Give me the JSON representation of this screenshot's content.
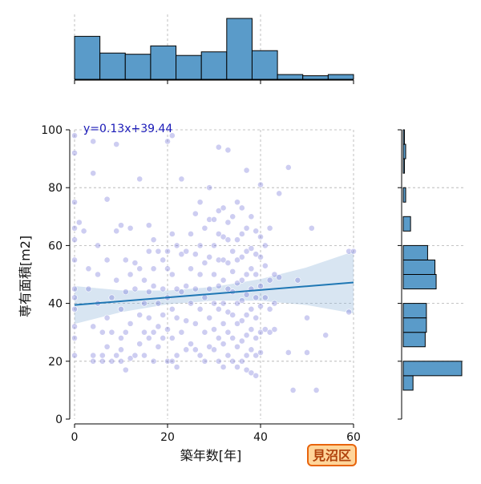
{
  "chart_data": {
    "type": "scatter",
    "xlabel": "築年数[年]",
    "ylabel": "専有面積[m2]",
    "xlim": [
      0,
      60
    ],
    "ylim": [
      0,
      100
    ],
    "x_ticks": [
      "0",
      "20",
      "40",
      "60"
    ],
    "y_ticks": [
      "0",
      "20",
      "40",
      "60",
      "80",
      "100"
    ],
    "grid": true,
    "regression": {
      "slope": 0.13,
      "intercept": 39.44,
      "label": "y=0.13x+39.44"
    },
    "badge": "見沼区",
    "points": [
      [
        0,
        92
      ],
      [
        0,
        98
      ],
      [
        0,
        75
      ],
      [
        0,
        66
      ],
      [
        0,
        62
      ],
      [
        0,
        55
      ],
      [
        0,
        45
      ],
      [
        0,
        42
      ],
      [
        0,
        38
      ],
      [
        0,
        32
      ],
      [
        0,
        28
      ],
      [
        0,
        22
      ],
      [
        1,
        68
      ],
      [
        2,
        65
      ],
      [
        3,
        52
      ],
      [
        3,
        45
      ],
      [
        4,
        96
      ],
      [
        4,
        85
      ],
      [
        4,
        32
      ],
      [
        4,
        22
      ],
      [
        4,
        20
      ],
      [
        5,
        60
      ],
      [
        5,
        50
      ],
      [
        5,
        40
      ],
      [
        6,
        22
      ],
      [
        6,
        20
      ],
      [
        6,
        30
      ],
      [
        7,
        76
      ],
      [
        7,
        55
      ],
      [
        7,
        35
      ],
      [
        7,
        25
      ],
      [
        8,
        42
      ],
      [
        8,
        30
      ],
      [
        8,
        20
      ],
      [
        9,
        65
      ],
      [
        9,
        48
      ],
      [
        9,
        22
      ],
      [
        9,
        95
      ],
      [
        10,
        67
      ],
      [
        10,
        38
      ],
      [
        10,
        28
      ],
      [
        10,
        24
      ],
      [
        10,
        20
      ],
      [
        11,
        55
      ],
      [
        11,
        44
      ],
      [
        11,
        30
      ],
      [
        11,
        17
      ],
      [
        12,
        66
      ],
      [
        12,
        50
      ],
      [
        12,
        33
      ],
      [
        12,
        21
      ],
      [
        13,
        54
      ],
      [
        13,
        45
      ],
      [
        13,
        22
      ],
      [
        14,
        83
      ],
      [
        14,
        52
      ],
      [
        14,
        36
      ],
      [
        14,
        26
      ],
      [
        15,
        48
      ],
      [
        15,
        40
      ],
      [
        15,
        30
      ],
      [
        15,
        22
      ],
      [
        16,
        67
      ],
      [
        16,
        58
      ],
      [
        16,
        44
      ],
      [
        16,
        35
      ],
      [
        16,
        28
      ],
      [
        17,
        62
      ],
      [
        17,
        52
      ],
      [
        17,
        46
      ],
      [
        17,
        30
      ],
      [
        17,
        20
      ],
      [
        18,
        58
      ],
      [
        18,
        40
      ],
      [
        18,
        32
      ],
      [
        18,
        25
      ],
      [
        19,
        55
      ],
      [
        19,
        45
      ],
      [
        19,
        36
      ],
      [
        19,
        28
      ],
      [
        20,
        96
      ],
      [
        20,
        58
      ],
      [
        20,
        52
      ],
      [
        20,
        42
      ],
      [
        20,
        31
      ],
      [
        20,
        20
      ],
      [
        21,
        98
      ],
      [
        21,
        64
      ],
      [
        21,
        50
      ],
      [
        21,
        38
      ],
      [
        21,
        28
      ],
      [
        21,
        20
      ],
      [
        22,
        60
      ],
      [
        22,
        45
      ],
      [
        22,
        35
      ],
      [
        22,
        22
      ],
      [
        22,
        18
      ],
      [
        23,
        83
      ],
      [
        23,
        57
      ],
      [
        23,
        44
      ],
      [
        23,
        30
      ],
      [
        24,
        58
      ],
      [
        24,
        46
      ],
      [
        24,
        34
      ],
      [
        24,
        24
      ],
      [
        25,
        64
      ],
      [
        25,
        52
      ],
      [
        25,
        40
      ],
      [
        25,
        26
      ],
      [
        26,
        71
      ],
      [
        26,
        57
      ],
      [
        26,
        45
      ],
      [
        26,
        33
      ],
      [
        26,
        24
      ],
      [
        27,
        75
      ],
      [
        27,
        60
      ],
      [
        27,
        50
      ],
      [
        27,
        38
      ],
      [
        27,
        22
      ],
      [
        28,
        66
      ],
      [
        28,
        54
      ],
      [
        28,
        42
      ],
      [
        28,
        30
      ],
      [
        28,
        20
      ],
      [
        29,
        80
      ],
      [
        29,
        69
      ],
      [
        29,
        56
      ],
      [
        29,
        45
      ],
      [
        29,
        35
      ],
      [
        29,
        25
      ],
      [
        30,
        69
      ],
      [
        30,
        60
      ],
      [
        30,
        50
      ],
      [
        30,
        40
      ],
      [
        30,
        31
      ],
      [
        30,
        24
      ],
      [
        31,
        94
      ],
      [
        31,
        72
      ],
      [
        31,
        64
      ],
      [
        31,
        55
      ],
      [
        31,
        46
      ],
      [
        31,
        38
      ],
      [
        31,
        28
      ],
      [
        31,
        20
      ],
      [
        32,
        73
      ],
      [
        32,
        63
      ],
      [
        32,
        55
      ],
      [
        32,
        48
      ],
      [
        32,
        40
      ],
      [
        32,
        33
      ],
      [
        32,
        26
      ],
      [
        32,
        18
      ],
      [
        33,
        93
      ],
      [
        33,
        68
      ],
      [
        33,
        62
      ],
      [
        33,
        54
      ],
      [
        33,
        45
      ],
      [
        33,
        37
      ],
      [
        33,
        30
      ],
      [
        33,
        22
      ],
      [
        34,
        70
      ],
      [
        34,
        58
      ],
      [
        34,
        51
      ],
      [
        34,
        44
      ],
      [
        34,
        36
      ],
      [
        34,
        28
      ],
      [
        34,
        20
      ],
      [
        35,
        75
      ],
      [
        35,
        62
      ],
      [
        35,
        55
      ],
      [
        35,
        47
      ],
      [
        35,
        40
      ],
      [
        35,
        33
      ],
      [
        35,
        25
      ],
      [
        35,
        18
      ],
      [
        36,
        73
      ],
      [
        36,
        64
      ],
      [
        36,
        56
      ],
      [
        36,
        48
      ],
      [
        36,
        41
      ],
      [
        36,
        34
      ],
      [
        36,
        27
      ],
      [
        36,
        20
      ],
      [
        37,
        86
      ],
      [
        37,
        66
      ],
      [
        37,
        58
      ],
      [
        37,
        50
      ],
      [
        37,
        43
      ],
      [
        37,
        36
      ],
      [
        37,
        29
      ],
      [
        37,
        22
      ],
      [
        37,
        17
      ],
      [
        38,
        70
      ],
      [
        38,
        59
      ],
      [
        38,
        52
      ],
      [
        38,
        45
      ],
      [
        38,
        38
      ],
      [
        38,
        31
      ],
      [
        38,
        24
      ],
      [
        38,
        16
      ],
      [
        39,
        65
      ],
      [
        39,
        57
      ],
      [
        39,
        50
      ],
      [
        39,
        42
      ],
      [
        39,
        35
      ],
      [
        39,
        28
      ],
      [
        39,
        22
      ],
      [
        39,
        15
      ],
      [
        40,
        81
      ],
      [
        40,
        63
      ],
      [
        40,
        56
      ],
      [
        40,
        46
      ],
      [
        40,
        39
      ],
      [
        40,
        30
      ],
      [
        40,
        23
      ],
      [
        41,
        60
      ],
      [
        41,
        53
      ],
      [
        41,
        42
      ],
      [
        41,
        31
      ],
      [
        42,
        66
      ],
      [
        42,
        48
      ],
      [
        42,
        38
      ],
      [
        42,
        30
      ],
      [
        43,
        50
      ],
      [
        43,
        40
      ],
      [
        43,
        31
      ],
      [
        44,
        78
      ],
      [
        44,
        49
      ],
      [
        46,
        87
      ],
      [
        46,
        23
      ],
      [
        47,
        10
      ],
      [
        48,
        48
      ],
      [
        50,
        35
      ],
      [
        50,
        23
      ],
      [
        51,
        66
      ],
      [
        52,
        10
      ],
      [
        54,
        29
      ],
      [
        59,
        37
      ],
      [
        59,
        58
      ],
      [
        60,
        58
      ]
    ],
    "top_histogram": {
      "bins": [
        "0-5.45",
        "5.45-10.9",
        "10.9-16.4",
        "16.4-21.8",
        "21.8-27.3",
        "27.3-32.7",
        "32.7-38.2",
        "38.2-43.6",
        "43.6-49.1",
        "49.1-54.5",
        "54.5-60"
      ],
      "counts": [
        36,
        22,
        21,
        28,
        20,
        23,
        51,
        24,
        4,
        3,
        4
      ]
    },
    "right_histogram": {
      "bins": [
        "10-15",
        "15-20",
        "20-25",
        "25-30",
        "30-35",
        "35-40",
        "40-45",
        "45-50",
        "50-55",
        "55-60",
        "60-65",
        "65-70",
        "70-75",
        "75-80",
        "80-85",
        "85-90",
        "90-95",
        "95-100"
      ],
      "counts": [
        8,
        48,
        0,
        18,
        19,
        19,
        0,
        27,
        26,
        20,
        0,
        6,
        0,
        2,
        0,
        1,
        2,
        1
      ]
    }
  }
}
